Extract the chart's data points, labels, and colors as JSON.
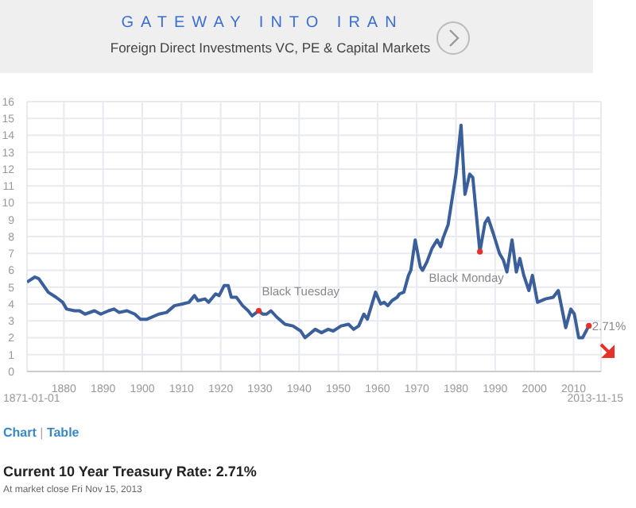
{
  "chart_data": {
    "type": "line",
    "title": "Current 10 Year Treasury Rate: 2.71%",
    "subtitle": "At market close Fri Nov 15, 2013",
    "x": [
      1870.6,
      1872.6,
      1873.6,
      1876,
      1878,
      1879.7,
      1880.7,
      1882.7,
      1884,
      1885.4,
      1887.8,
      1889.4,
      1891.4,
      1892.8,
      1894.1,
      1896.1,
      1898.1,
      1899.5,
      1901.2,
      1904.2,
      1906.2,
      1908.2,
      1910.2,
      1911.9,
      1913.3,
      1914.2,
      1916,
      1916.9,
      1918.7,
      1919.6,
      1920.9,
      1921.9,
      1922.7,
      1924,
      1925.6,
      1927,
      1928,
      1929.7,
      1930.7,
      1931.7,
      1932.8,
      1934.4,
      1936.4,
      1938.4,
      1940.4,
      1941.5,
      1944.1,
      1945.7,
      1947.4,
      1948.7,
      1950.7,
      1952.6,
      1953.9,
      1955.2,
      1956.5,
      1957.4,
      1959.5,
      1960.8,
      1961.7,
      1962.6,
      1963.7,
      1965,
      1965.6,
      1966.7,
      1967.9,
      1968.5,
      1969.6,
      1970.9,
      1971.5,
      1972.6,
      1973.9,
      1975.2,
      1976.1,
      1976.7,
      1978,
      1980,
      1981.3,
      1982.3,
      1983.5,
      1984.3,
      1986.1,
      1987.4,
      1988.2,
      1989.5,
      1991.1,
      1992.1,
      1993,
      1994.3,
      1995.4,
      1996.3,
      1997.3,
      1998.6,
      1999.5,
      2000.8,
      2002.8,
      2004.8,
      2006.1,
      2008,
      2009.3,
      2010.2,
      2011.3,
      2012.3,
      2013.9
    ],
    "series": [
      {
        "color": "#3a5f9a",
        "values": [
          5.3,
          5.6,
          5.5,
          4.7,
          4.4,
          4.1,
          3.7,
          3.6,
          3.6,
          3.4,
          3.6,
          3.4,
          3.6,
          3.7,
          3.5,
          3.6,
          3.4,
          3.1,
          3.1,
          3.4,
          3.5,
          3.9,
          4.0,
          4.1,
          4.5,
          4.2,
          4.3,
          4.1,
          4.6,
          4.5,
          5.1,
          5.1,
          4.4,
          4.4,
          3.9,
          3.6,
          3.3,
          3.6,
          3.4,
          3.4,
          3.6,
          3.2,
          2.8,
          2.7,
          2.4,
          2.0,
          2.5,
          2.3,
          2.5,
          2.4,
          2.7,
          2.8,
          2.5,
          2.7,
          3.4,
          3.1,
          4.7,
          4.0,
          4.1,
          3.9,
          4.2,
          4.4,
          4.6,
          4.7,
          5.7,
          6.0,
          7.8,
          6.2,
          6.0,
          6.5,
          7.3,
          7.8,
          7.4,
          7.9,
          8.7,
          11.7,
          14.6,
          10.5,
          11.7,
          11.5,
          7.1,
          8.8,
          9.1,
          8.2,
          7.0,
          6.6,
          5.9,
          7.8,
          5.9,
          6.7,
          5.7,
          4.8,
          5.7,
          4.1,
          4.3,
          4.4,
          4.8,
          2.6,
          3.7,
          3.4,
          2.0,
          2.0,
          2.71
        ]
      }
    ],
    "xlim": [
      1870.6,
      2017
    ],
    "xticks": [
      1880,
      1890,
      1900,
      1910,
      1920,
      1930,
      1940,
      1950,
      1960,
      1970,
      1980,
      1990,
      2000,
      2010
    ],
    "ylim": [
      0,
      16
    ],
    "yticks": [
      0,
      1,
      2,
      3,
      4,
      5,
      6,
      7,
      8,
      9,
      10,
      11,
      12,
      13,
      14,
      15,
      16
    ],
    "grid": true,
    "annotations": [
      {
        "text": "Black Tuesday",
        "x": 1929.7,
        "y": 3.6
      },
      {
        "text": "Black Monday",
        "x": 1986.1,
        "y": 7.1
      },
      {
        "text": "2.71%",
        "x": 2013.9,
        "y": 2.71
      },
      "1871-01-01",
      "2013-11-15",
      "GATEWAY INTO IRAN",
      "Foreign Direct Investments VC, PE & Capital Markets",
      "Chart",
      "Table",
      "|"
    ]
  }
}
